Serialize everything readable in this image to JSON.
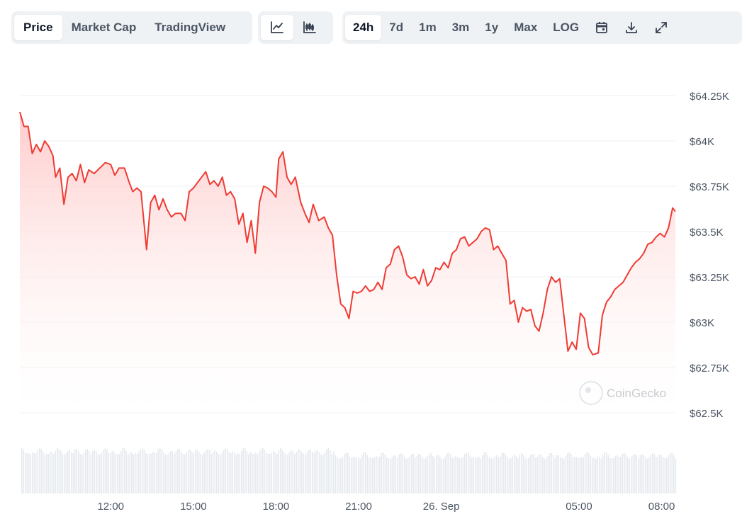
{
  "toolbar": {
    "view_tabs": [
      {
        "label": "Price",
        "active": true
      },
      {
        "label": "Market Cap",
        "active": false
      },
      {
        "label": "TradingView",
        "active": false
      }
    ],
    "chart_style_icons": [
      {
        "icon": "line-chart-icon",
        "active": true
      },
      {
        "icon": "candlestick-icon",
        "active": false
      }
    ],
    "range_tabs": [
      {
        "label": "24h",
        "active": true
      },
      {
        "label": "7d",
        "active": false
      },
      {
        "label": "1m",
        "active": false
      },
      {
        "label": "3m",
        "active": false
      },
      {
        "label": "1y",
        "active": false
      },
      {
        "label": "Max",
        "active": false
      },
      {
        "label": "LOG",
        "active": false
      }
    ],
    "action_icons": [
      "calendar-icon",
      "download-icon",
      "expand-icon"
    ]
  },
  "watermark": "CoinGecko",
  "colors": {
    "line": "#ef3b33",
    "fill_top": "#ffc9c9",
    "volume": "#e6e9ee",
    "grid": "#eef0f3",
    "axis_text": "#4b5563"
  },
  "chart_data": {
    "type": "area",
    "x_ticks": [
      "12:00",
      "15:00",
      "18:00",
      "21:00",
      "26. Sep",
      "05:00",
      "08:00"
    ],
    "x_tick_hours": [
      2,
      5,
      8,
      11,
      14,
      19,
      22
    ],
    "y_ticks": [
      "$64.25K",
      "$64K",
      "$63.75K",
      "$63.5K",
      "$63.25K",
      "$63K",
      "$62.75K",
      "$62.5K"
    ],
    "y_tick_values": [
      64250,
      64000,
      63750,
      63500,
      63250,
      63000,
      62750,
      62500
    ],
    "ylim": [
      62500,
      64250
    ],
    "xlim_hours": [
      -1.3,
      22.5
    ],
    "grid": true,
    "series": [
      {
        "values": [
          [
            -1.3,
            64160
          ],
          [
            -1.15,
            64080
          ],
          [
            -1.0,
            64080
          ],
          [
            -0.85,
            63930
          ],
          [
            -0.7,
            63980
          ],
          [
            -0.55,
            63940
          ],
          [
            -0.4,
            64000
          ],
          [
            -0.25,
            63970
          ],
          [
            -0.1,
            63920
          ],
          [
            0.0,
            63800
          ],
          [
            0.15,
            63850
          ],
          [
            0.3,
            63650
          ],
          [
            0.45,
            63800
          ],
          [
            0.6,
            63820
          ],
          [
            0.75,
            63780
          ],
          [
            0.9,
            63870
          ],
          [
            1.05,
            63770
          ],
          [
            1.2,
            63840
          ],
          [
            1.4,
            63820
          ],
          [
            1.6,
            63850
          ],
          [
            1.8,
            63880
          ],
          [
            2.0,
            63870
          ],
          [
            2.15,
            63810
          ],
          [
            2.3,
            63850
          ],
          [
            2.5,
            63850
          ],
          [
            2.65,
            63780
          ],
          [
            2.8,
            63720
          ],
          [
            2.95,
            63740
          ],
          [
            3.1,
            63720
          ],
          [
            3.3,
            63400
          ],
          [
            3.45,
            63660
          ],
          [
            3.6,
            63700
          ],
          [
            3.75,
            63620
          ],
          [
            3.9,
            63680
          ],
          [
            4.05,
            63620
          ],
          [
            4.2,
            63580
          ],
          [
            4.35,
            63600
          ],
          [
            4.55,
            63600
          ],
          [
            4.7,
            63560
          ],
          [
            4.85,
            63720
          ],
          [
            5.0,
            63740
          ],
          [
            5.15,
            63770
          ],
          [
            5.3,
            63800
          ],
          [
            5.45,
            63830
          ],
          [
            5.6,
            63760
          ],
          [
            5.75,
            63780
          ],
          [
            5.9,
            63750
          ],
          [
            6.05,
            63800
          ],
          [
            6.2,
            63700
          ],
          [
            6.35,
            63720
          ],
          [
            6.5,
            63680
          ],
          [
            6.65,
            63540
          ],
          [
            6.8,
            63600
          ],
          [
            6.95,
            63440
          ],
          [
            7.1,
            63560
          ],
          [
            7.25,
            63380
          ],
          [
            7.4,
            63660
          ],
          [
            7.55,
            63750
          ],
          [
            7.7,
            63740
          ],
          [
            7.85,
            63720
          ],
          [
            8.0,
            63690
          ],
          [
            8.1,
            63900
          ],
          [
            8.25,
            63940
          ],
          [
            8.4,
            63800
          ],
          [
            8.55,
            63760
          ],
          [
            8.7,
            63800
          ],
          [
            8.9,
            63660
          ],
          [
            9.05,
            63600
          ],
          [
            9.2,
            63550
          ],
          [
            9.35,
            63650
          ],
          [
            9.55,
            63560
          ],
          [
            9.75,
            63580
          ],
          [
            9.9,
            63520
          ],
          [
            10.05,
            63480
          ],
          [
            10.2,
            63260
          ],
          [
            10.35,
            63100
          ],
          [
            10.5,
            63080
          ],
          [
            10.65,
            63020
          ],
          [
            10.8,
            63170
          ],
          [
            10.95,
            63160
          ],
          [
            11.1,
            63170
          ],
          [
            11.25,
            63200
          ],
          [
            11.4,
            63170
          ],
          [
            11.55,
            63180
          ],
          [
            11.7,
            63220
          ],
          [
            11.85,
            63180
          ],
          [
            12.0,
            63300
          ],
          [
            12.15,
            63320
          ],
          [
            12.3,
            63400
          ],
          [
            12.45,
            63420
          ],
          [
            12.6,
            63360
          ],
          [
            12.75,
            63260
          ],
          [
            12.9,
            63240
          ],
          [
            13.05,
            63250
          ],
          [
            13.2,
            63210
          ],
          [
            13.35,
            63290
          ],
          [
            13.5,
            63200
          ],
          [
            13.65,
            63230
          ],
          [
            13.8,
            63300
          ],
          [
            13.95,
            63290
          ],
          [
            14.1,
            63330
          ],
          [
            14.25,
            63300
          ],
          [
            14.4,
            63380
          ],
          [
            14.55,
            63400
          ],
          [
            14.7,
            63460
          ],
          [
            14.85,
            63470
          ],
          [
            15.0,
            63420
          ],
          [
            15.15,
            63440
          ],
          [
            15.3,
            63460
          ],
          [
            15.45,
            63500
          ],
          [
            15.6,
            63520
          ],
          [
            15.75,
            63510
          ],
          [
            15.9,
            63400
          ],
          [
            16.05,
            63420
          ],
          [
            16.2,
            63380
          ],
          [
            16.35,
            63340
          ],
          [
            16.5,
            63100
          ],
          [
            16.65,
            63120
          ],
          [
            16.8,
            63000
          ],
          [
            16.95,
            63080
          ],
          [
            17.1,
            63060
          ],
          [
            17.25,
            63070
          ],
          [
            17.4,
            62980
          ],
          [
            17.55,
            62950
          ],
          [
            17.7,
            63050
          ],
          [
            17.85,
            63180
          ],
          [
            18.0,
            63250
          ],
          [
            18.15,
            63220
          ],
          [
            18.3,
            63240
          ],
          [
            18.45,
            63040
          ],
          [
            18.6,
            62840
          ],
          [
            18.75,
            62890
          ],
          [
            18.9,
            62850
          ],
          [
            19.05,
            63050
          ],
          [
            19.2,
            63020
          ],
          [
            19.35,
            62860
          ],
          [
            19.5,
            62820
          ],
          [
            19.7,
            62830
          ],
          [
            19.85,
            63040
          ],
          [
            20.0,
            63110
          ],
          [
            20.15,
            63140
          ],
          [
            20.3,
            63180
          ],
          [
            20.45,
            63200
          ],
          [
            20.6,
            63220
          ],
          [
            20.75,
            63260
          ],
          [
            20.9,
            63300
          ],
          [
            21.05,
            63330
          ],
          [
            21.2,
            63350
          ],
          [
            21.35,
            63380
          ],
          [
            21.5,
            63430
          ],
          [
            21.65,
            63440
          ],
          [
            21.8,
            63470
          ],
          [
            21.95,
            63490
          ],
          [
            22.1,
            63470
          ],
          [
            22.25,
            63520
          ],
          [
            22.4,
            63630
          ],
          [
            22.5,
            63610
          ]
        ]
      }
    ]
  }
}
